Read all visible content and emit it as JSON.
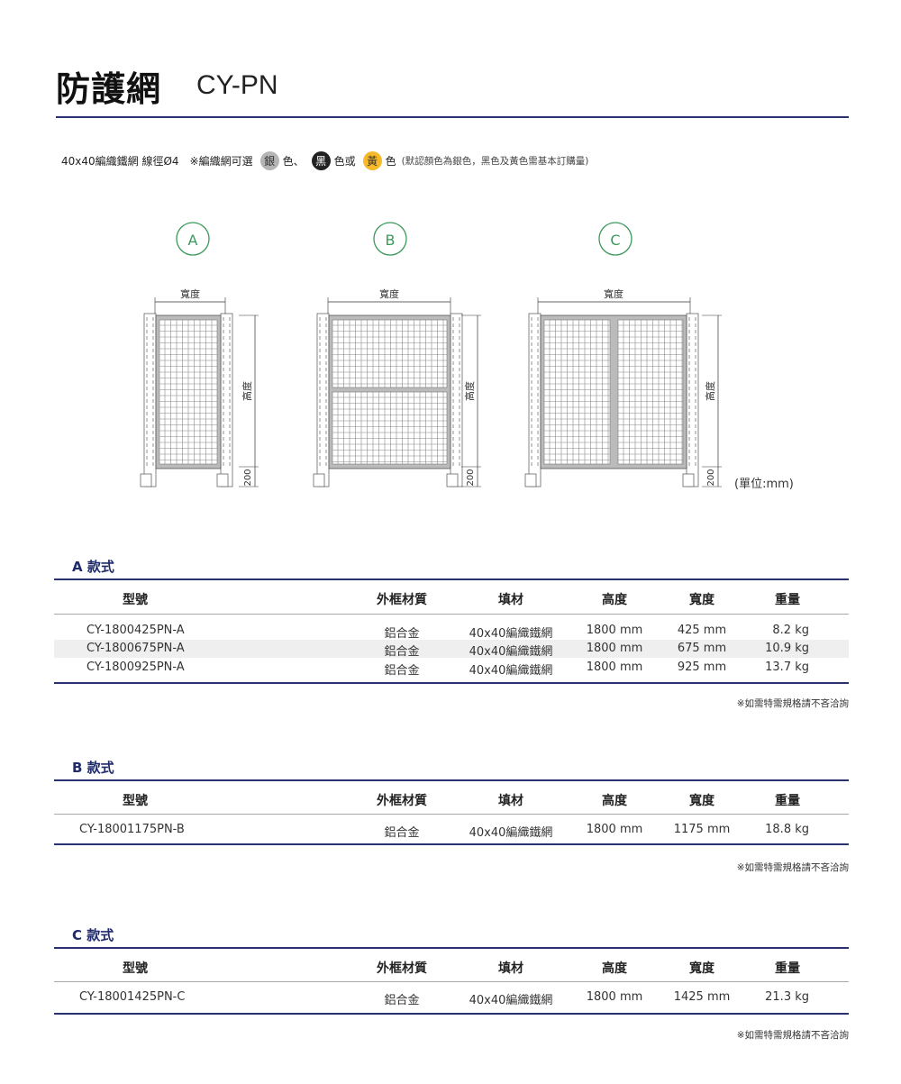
{
  "header": {
    "title": "防護網",
    "code": "CY-PN"
  },
  "spec": {
    "mesh": "40x40編織鐵網 線徑Ø4",
    "options_prefix": "※編織網可選",
    "colors": [
      {
        "label": "銀",
        "suffix": "色、",
        "bg": "#b5b5b5",
        "fg": "#333333"
      },
      {
        "label": "黑",
        "suffix": "色或",
        "bg": "#222222",
        "fg": "#ffffff"
      },
      {
        "label": "黃",
        "suffix": "色",
        "bg": "#f5b92a",
        "fg": "#333333"
      }
    ],
    "note": "(默認顏色為銀色，黑色及黃色需基本訂購量)"
  },
  "diagram": {
    "accent": "#3a9a5a",
    "types": [
      "A",
      "B",
      "C"
    ],
    "width_label": "寬度",
    "height_label": "高度",
    "base_label": "200",
    "unit": "(單位:mm)"
  },
  "tables": [
    {
      "title": "A 款式",
      "headers": [
        "型號",
        "外框材質",
        "填材",
        "高度",
        "寬度",
        "重量"
      ],
      "rows": [
        [
          "CY-1800425PN-A",
          "鋁合金",
          "40x40編織鐵網",
          "1800 mm",
          "425 mm",
          "8.2 kg"
        ],
        [
          "CY-1800675PN-A",
          "鋁合金",
          "40x40編織鐵網",
          "1800 mm",
          "675 mm",
          "10.9 kg"
        ],
        [
          "CY-1800925PN-A",
          "鋁合金",
          "40x40編織鐵網",
          "1800 mm",
          "925 mm",
          "13.7 kg"
        ]
      ],
      "footnote": "※如需特需規格請不吝洽詢"
    },
    {
      "title": "B 款式",
      "headers": [
        "型號",
        "外框材質",
        "填材",
        "高度",
        "寬度",
        "重量"
      ],
      "rows": [
        [
          "CY-18001175PN-B",
          "鋁合金",
          "40x40編織鐵網",
          "1800 mm",
          "1175 mm",
          "18.8 kg"
        ]
      ],
      "footnote": "※如需特需規格請不吝洽詢"
    },
    {
      "title": "C 款式",
      "headers": [
        "型號",
        "外框材質",
        "填材",
        "高度",
        "寬度",
        "重量"
      ],
      "rows": [
        [
          "CY-18001425PN-C",
          "鋁合金",
          "40x40編織鐵網",
          "1800 mm",
          "1425 mm",
          "21.3 kg"
        ]
      ],
      "footnote": "※如需特需規格請不吝洽詢"
    }
  ]
}
